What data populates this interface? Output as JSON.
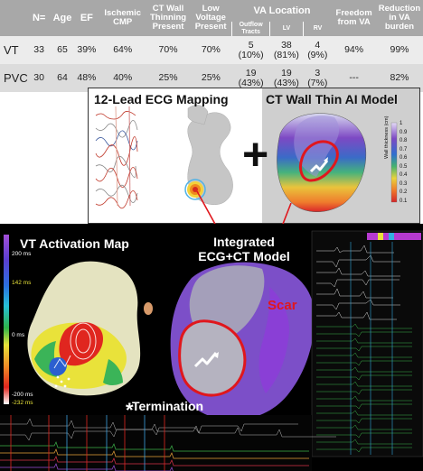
{
  "table": {
    "headers": {
      "n": "N=",
      "age": "Age",
      "ef": "EF",
      "ischemic": "Ischemic CMP",
      "ct_wall": "CT Wall Thinning Present",
      "low_voltage": "Low Voltage Present",
      "va_location": "VA Location",
      "freedom": "Freedom from VA",
      "reduction": "Reduction in VA burden"
    },
    "subheaders": {
      "outflow": "Outflow Tracts",
      "lv": "LV",
      "rv": "RV"
    },
    "rows": [
      {
        "label": "VT",
        "n": "33",
        "age": "65",
        "ef": "39%",
        "ischemic": "64%",
        "ct_wall": "70%",
        "low_voltage": "70%",
        "outflow_count": "5",
        "outflow_pct": "(10%)",
        "lv_count": "38",
        "lv_pct": "(81%)",
        "rv_count": "4",
        "rv_pct": "(9%)",
        "freedom": "94%",
        "reduction": "99%"
      },
      {
        "label": "PVC",
        "n": "30",
        "age": "64",
        "ef": "48%",
        "ischemic": "40%",
        "ct_wall": "25%",
        "low_voltage": "25%",
        "outflow_count": "19",
        "outflow_pct": "(43%)",
        "lv_count": "19",
        "lv_pct": "(43%)",
        "rv_count": "3",
        "rv_pct": "(7%)",
        "freedom": "---",
        "reduction": "82%"
      }
    ]
  },
  "panels": {
    "ecg_mapping_title": "12-Lead ECG Mapping",
    "ct_model_title": "CT Wall Thin AI Model",
    "plus_sign": "+",
    "colorbar_ticks": [
      "1",
      "0.9",
      "0.8",
      "0.7",
      "0.6",
      "0.5",
      "0.4",
      "0.3",
      "0.2",
      "0.1"
    ],
    "colorbar_label": "Wall thickness (cm)",
    "vt_activation_title": "VT Activation Map",
    "integrated_title_1": "Integrated",
    "integrated_title_2": "ECG+CT Model",
    "scar_label": "Scar",
    "termination_label": "Termination",
    "termination_star": "*",
    "activation_scale": {
      "top": "200 ms",
      "upper": "142 ms",
      "mid": "0 ms",
      "lower": "-200 ms",
      "bottom": "-232 ms"
    }
  },
  "colors": {
    "table_header": "#a8a8a8",
    "row_vt": "#ececec",
    "row_pvc": "#dcdcdc",
    "scar_outline": "#e0171d",
    "scar_text": "#e0171d",
    "ct_purple": "#6a2bb8"
  }
}
